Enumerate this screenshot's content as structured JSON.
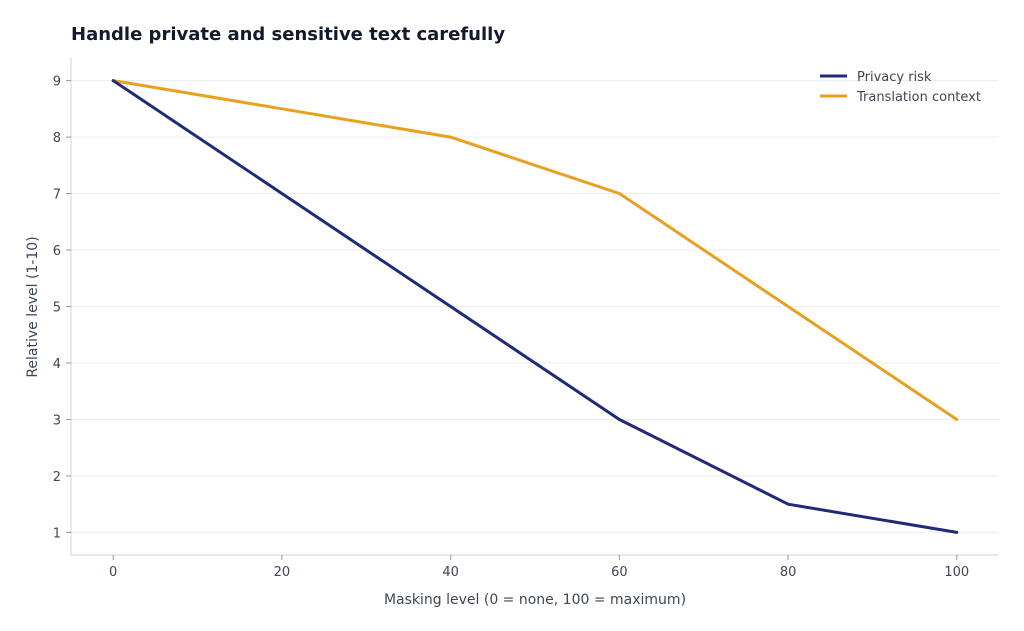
{
  "chart_data": {
    "type": "line",
    "title": "Handle private and sensitive text carefully",
    "xlabel": "Masking level (0 = none, 100 = maximum)",
    "ylabel": "Relative level (1-10)",
    "x": [
      0,
      20,
      40,
      60,
      80,
      100
    ],
    "xlim": [
      -5,
      105
    ],
    "ylim": [
      0.6,
      9.4
    ],
    "xticks": [
      0,
      20,
      40,
      60,
      80,
      100
    ],
    "yticks": [
      1,
      2,
      3,
      4,
      5,
      6,
      7,
      8,
      9
    ],
    "grid": "horizontal",
    "legend": "top-right",
    "series": [
      {
        "name": "Privacy risk",
        "color": "#1f2a78",
        "values": [
          9,
          7,
          5,
          3,
          1.5,
          1
        ]
      },
      {
        "name": "Translation context",
        "color": "#e8a020",
        "values": [
          9,
          8.5,
          8,
          7,
          5,
          3
        ]
      }
    ]
  }
}
